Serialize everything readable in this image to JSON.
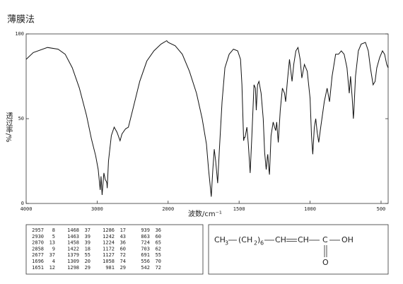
{
  "chart_data": {
    "type": "line",
    "title": "薄膜法",
    "x_label": "波数/cm⁻¹",
    "y_label": "透过率/%",
    "xlim": [
      4000,
      450
    ],
    "x_scale_break": 2000,
    "xticks": [
      4000,
      3000,
      2000,
      1500,
      1000,
      500
    ],
    "ylim": [
      0,
      100
    ],
    "yticks": [
      0,
      50,
      100
    ],
    "x": [
      4000,
      3900,
      3700,
      3550,
      3450,
      3350,
      3250,
      3150,
      3080,
      3020,
      2985,
      2957,
      2945,
      2930,
      2905,
      2885,
      2870,
      2863,
      2858,
      2840,
      2800,
      2760,
      2720,
      2677,
      2650,
      2600,
      2560,
      2500,
      2400,
      2300,
      2200,
      2100,
      2020,
      2000,
      1950,
      1900,
      1850,
      1800,
      1760,
      1730,
      1715,
      1696,
      1685,
      1675,
      1665,
      1651,
      1640,
      1620,
      1600,
      1570,
      1540,
      1510,
      1490,
      1480,
      1468,
      1463,
      1458,
      1445,
      1435,
      1422,
      1410,
      1395,
      1385,
      1379,
      1370,
      1360,
      1345,
      1330,
      1320,
      1309,
      1300,
      1298,
      1290,
      1286,
      1275,
      1260,
      1250,
      1242,
      1235,
      1224,
      1210,
      1195,
      1180,
      1172,
      1160,
      1145,
      1127,
      1115,
      1100,
      1085,
      1070,
      1058,
      1040,
      1020,
      1000,
      990,
      981,
      970,
      960,
      950,
      939,
      925,
      900,
      880,
      863,
      845,
      820,
      800,
      780,
      760,
      740,
      724,
      715,
      703,
      695,
      691,
      680,
      660,
      640,
      610,
      590,
      575,
      556,
      542,
      530,
      510,
      490,
      475,
      460,
      450
    ],
    "series": [
      {
        "color": "#111111",
        "values": [
          85,
          89,
          92,
          91,
          88,
          80,
          68,
          52,
          38,
          28,
          20,
          8,
          16,
          5,
          18,
          14,
          13,
          12,
          9,
          25,
          40,
          45,
          42,
          37,
          41,
          44,
          45,
          55,
          72,
          84,
          90,
          94,
          96,
          95,
          93,
          88,
          78,
          65,
          50,
          35,
          20,
          4,
          20,
          32,
          25,
          12,
          30,
          60,
          80,
          88,
          91,
          90,
          85,
          70,
          37,
          39,
          39,
          45,
          35,
          18,
          40,
          70,
          68,
          55,
          70,
          72,
          65,
          50,
          30,
          20,
          28,
          29,
          20,
          17,
          40,
          48,
          45,
          43,
          48,
          36,
          55,
          68,
          65,
          60,
          72,
          85,
          72,
          82,
          90,
          92,
          85,
          74,
          82,
          78,
          62,
          40,
          29,
          45,
          50,
          42,
          36,
          45,
          60,
          68,
          60,
          75,
          88,
          88,
          90,
          88,
          80,
          65,
          75,
          62,
          50,
          55,
          75,
          90,
          94,
          95,
          90,
          80,
          70,
          72,
          80,
          86,
          90,
          88,
          82,
          80
        ]
      }
    ]
  },
  "peak_table": [
    [
      [
        2957,
        8
      ],
      [
        2930,
        5
      ],
      [
        2870,
        13
      ],
      [
        2858,
        9
      ],
      [
        2677,
        37
      ],
      [
        1696,
        4
      ],
      [
        1651,
        12
      ]
    ],
    [
      [
        1468,
        37
      ],
      [
        1463,
        39
      ],
      [
        1458,
        39
      ],
      [
        1422,
        18
      ],
      [
        1379,
        55
      ],
      [
        1309,
        20
      ],
      [
        1298,
        29
      ]
    ],
    [
      [
        1286,
        17
      ],
      [
        1242,
        43
      ],
      [
        1224,
        36
      ],
      [
        1172,
        60
      ],
      [
        1127,
        72
      ],
      [
        1058,
        74
      ],
      [
        981,
        29
      ]
    ],
    [
      [
        939,
        36
      ],
      [
        863,
        60
      ],
      [
        724,
        65
      ],
      [
        703,
        62
      ],
      [
        691,
        55
      ],
      [
        556,
        70
      ],
      [
        542,
        72
      ]
    ]
  ],
  "structure": [
    "CH",
    "3",
    "(CH",
    "2",
    ")",
    "6",
    "CH",
    "CH",
    "C",
    "OH",
    "O"
  ]
}
